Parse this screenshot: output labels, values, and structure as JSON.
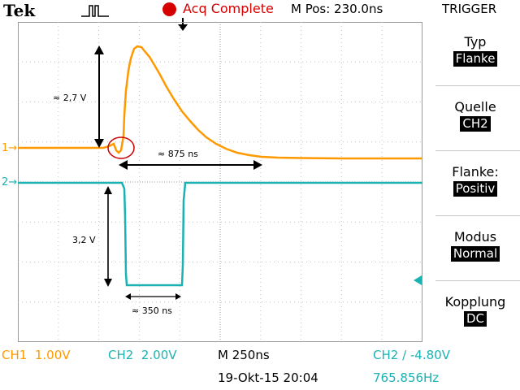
{
  "header": {
    "brand": "Tek",
    "acquisition_status": "Acq Complete",
    "horizontal_position": "M Pos: 230.0ns",
    "menu_title": "TRIGGER"
  },
  "trigger_menu": {
    "items": [
      {
        "label": "Typ",
        "value": "Flanke"
      },
      {
        "label": "Quelle",
        "value": "CH2"
      },
      {
        "label": "Flanke:",
        "value": "Positiv"
      },
      {
        "label": "Modus",
        "value": "Normal"
      },
      {
        "label": "Kopplung",
        "value": "DC"
      }
    ]
  },
  "channels": {
    "ch1": {
      "marker": "1",
      "label": "CH1",
      "scale": "1.00V",
      "color": "#ff9900"
    },
    "ch2": {
      "marker": "2",
      "label": "CH2",
      "scale": "2.00V",
      "color": "#1ab2b2"
    }
  },
  "timebase": "M 250ns",
  "trigger_info": "CH2 ∕ -4.80V",
  "frequency": "765.856Hz",
  "datetime": "19-Okt-15 20:04",
  "annotations": {
    "ch1_amplitude": "≈ 2,7 V",
    "ch1_decay_time": "≈ 875 ns",
    "ch2_amplitude": "3,2 V",
    "ch2_pulse_width": "≈ 350 ns"
  },
  "colors": {
    "ch1": "#ff9900",
    "ch2": "#1ab2b2",
    "graticule": "#9a9a9a",
    "acquisition_status": "#d50000",
    "highlight_circle": "#cc0000"
  },
  "icons": [
    "pulse-trigger-icon",
    "acquisition-status-dot",
    "trigger-position-arrow-icon",
    "trigger-level-arrow-icon"
  ]
}
